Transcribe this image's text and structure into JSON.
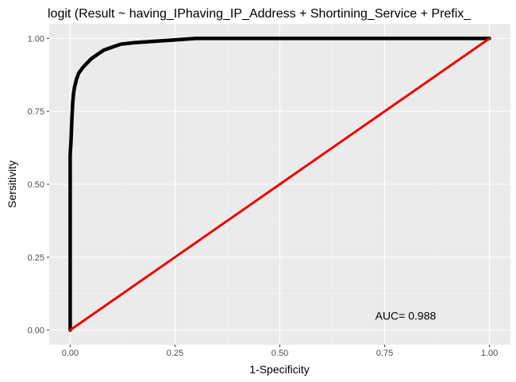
{
  "chart_data": {
    "type": "line",
    "title": "logit (Result ~ having_IPhaving_IP_Address + Shortining_Service + Prefix_",
    "xlabel": "1-Specificity",
    "ylabel": "Sersitivity",
    "xlim": [
      -0.05,
      1.05
    ],
    "ylim": [
      -0.05,
      1.05
    ],
    "x_ticks": [
      0.0,
      0.25,
      0.5,
      0.75,
      1.0
    ],
    "y_ticks": [
      0.0,
      0.25,
      0.5,
      0.75,
      1.0
    ],
    "x_tick_labels": [
      "0.00",
      "0.25",
      "0.50",
      "0.75",
      "1.00"
    ],
    "y_tick_labels": [
      "0.00",
      "0.25",
      "0.50",
      "0.75",
      "1.00"
    ],
    "grid": true,
    "background": "#ebebeb",
    "series": [
      {
        "color": "#000000",
        "x": [
          0.0,
          0.0,
          0.002,
          0.004,
          0.006,
          0.008,
          0.01,
          0.015,
          0.02,
          0.03,
          0.04,
          0.05,
          0.06,
          0.07,
          0.08,
          0.1,
          0.12,
          0.15,
          0.2,
          0.25,
          0.3,
          0.5,
          0.75,
          1.0
        ],
        "y": [
          0.0,
          0.6,
          0.65,
          0.72,
          0.78,
          0.81,
          0.83,
          0.86,
          0.88,
          0.9,
          0.915,
          0.93,
          0.94,
          0.95,
          0.96,
          0.97,
          0.98,
          0.985,
          0.99,
          0.995,
          1.0,
          1.0,
          1.0,
          1.0
        ]
      },
      {
        "color": "#ee0000",
        "x": [
          0.0,
          1.0
        ],
        "y": [
          0.0,
          1.0
        ]
      }
    ],
    "annotation": {
      "text": "AUC= 0.988",
      "x": 0.8,
      "y": 0.05
    }
  }
}
